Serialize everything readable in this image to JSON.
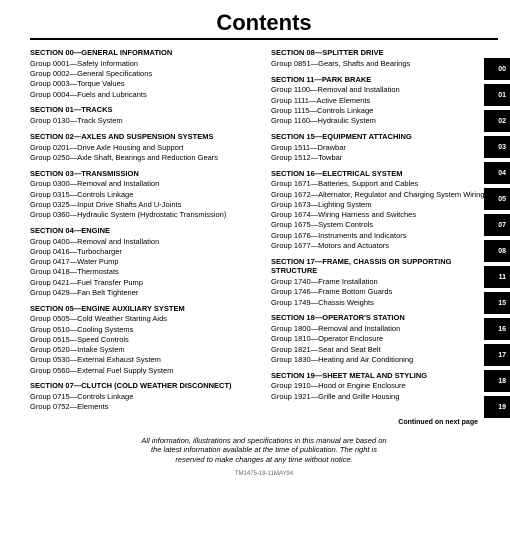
{
  "title": "Contents",
  "tabs": [
    "00",
    "01",
    "02",
    "03",
    "04",
    "05",
    "07",
    "08",
    "11",
    "15",
    "16",
    "17",
    "18",
    "19"
  ],
  "continued": "Continued on next page",
  "footer": [
    "All information, illustrations and specifications in this manual are based on",
    "the latest information available at the time of publication. The right is",
    "reserved to make changes at any time without notice."
  ],
  "docid": "TM1475-19-11MAY94",
  "left": [
    {
      "type": "head",
      "t": "SECTION 00—GENERAL INFORMATION"
    },
    {
      "type": "grp",
      "t": "Group 0001—Safety Information"
    },
    {
      "type": "grp",
      "t": "Group 0002—General Specifications"
    },
    {
      "type": "grp",
      "t": "Group 0003—Torque Values"
    },
    {
      "type": "grp",
      "t": "Group 0004—Fuels and Lubricants"
    },
    {
      "type": "head",
      "t": "SECTION 01—TRACKS"
    },
    {
      "type": "grp",
      "t": "Group 0130—Track System"
    },
    {
      "type": "head",
      "t": "SECTION 02—AXLES AND SUSPENSION SYSTEMS"
    },
    {
      "type": "grp",
      "t": "Group 0201—Drive Axle Housing and Support"
    },
    {
      "type": "grp",
      "t": "Group 0250—Axle Shaft, Bearings and Reduction Gears"
    },
    {
      "type": "head",
      "t": "SECTION 03—TRANSMISSION"
    },
    {
      "type": "grp",
      "t": "Group 0300—Removal and Installation"
    },
    {
      "type": "grp",
      "t": "Group 0315—Controls Linkage"
    },
    {
      "type": "grp",
      "t": "Group 0325—Input Drive Shafts And U-Joints"
    },
    {
      "type": "grp",
      "t": "Group 0360—Hydraulic System (Hydrostatic Transmission)"
    },
    {
      "type": "head",
      "t": "SECTION 04—ENGINE"
    },
    {
      "type": "grp",
      "t": "Group 0400—Removal and Installation"
    },
    {
      "type": "grp",
      "t": "Group 0416—Turbocharger"
    },
    {
      "type": "grp",
      "t": "Group 0417—Water Pump"
    },
    {
      "type": "grp",
      "t": "Group 0418—Thermostats"
    },
    {
      "type": "grp",
      "t": "Group 0421—Fuel Transfer Pump"
    },
    {
      "type": "grp",
      "t": "Group 0429—Fan Belt Tightener"
    },
    {
      "type": "head",
      "t": "SECTION 05—ENGINE AUXILIARY SYSTEM"
    },
    {
      "type": "grp",
      "t": "Group 0505—Cold Weather Starting Aids"
    },
    {
      "type": "grp",
      "t": "Group 0510—Cooling Systems"
    },
    {
      "type": "grp",
      "t": "Group 0515—Speed Controls"
    },
    {
      "type": "grp",
      "t": "Group 0520—Intake System"
    },
    {
      "type": "grp",
      "t": "Group 0530—External Exhaust System"
    },
    {
      "type": "grp",
      "t": "Group 0560—External Fuel Supply System"
    },
    {
      "type": "head",
      "t": "SECTION 07—CLUTCH (COLD WEATHER DISCONNECT)"
    },
    {
      "type": "grp",
      "t": "Group 0715—Controls Linkage"
    },
    {
      "type": "grp",
      "t": "Group 0752—Elements"
    }
  ],
  "right": [
    {
      "type": "head",
      "t": "SECTION 08—SPLITTER DRIVE"
    },
    {
      "type": "grp",
      "t": "Group 0851—Gears, Shafts and Bearings"
    },
    {
      "type": "head",
      "t": "SECTION 11—PARK BRAKE"
    },
    {
      "type": "grp",
      "t": "Group 1100—Removal and Installation"
    },
    {
      "type": "grp",
      "t": "Group 1111—Active Elements"
    },
    {
      "type": "grp",
      "t": "Group 1115—Controls Linkage"
    },
    {
      "type": "grp",
      "t": "Group 1160—Hydraulic System"
    },
    {
      "type": "head",
      "t": "SECTION 15—EQUIPMENT ATTACHING"
    },
    {
      "type": "grp",
      "t": "Group 1511—Drawbar"
    },
    {
      "type": "grp",
      "t": "Group 1512—Towbar"
    },
    {
      "type": "head",
      "t": "SECTION 16—ELECTRICAL SYSTEM"
    },
    {
      "type": "grp",
      "t": "Group 1671—Batteries, Support and Cables"
    },
    {
      "type": "grp",
      "t": "Group 1672—Alternator, Regulator and Charging System Wiring"
    },
    {
      "type": "grp",
      "t": "Group 1673—Lighting System"
    },
    {
      "type": "grp",
      "t": "Group 1674—Wiring Harness and Switches"
    },
    {
      "type": "grp",
      "t": "Group 1675—System Controls"
    },
    {
      "type": "grp",
      "t": "Group 1676—Instruments and Indicators"
    },
    {
      "type": "grp",
      "t": "Group 1677—Motors and Actuators"
    },
    {
      "type": "head",
      "t": "SECTION 17—FRAME, CHASSIS OR SUPPORTING STRUCTURE"
    },
    {
      "type": "grp",
      "t": "Group 1740—Frame Installation"
    },
    {
      "type": "grp",
      "t": "Group 1746—Frame Bottom Guards"
    },
    {
      "type": "grp",
      "t": "Group 1749—Chassis Weights"
    },
    {
      "type": "head",
      "t": "SECTION 18—OPERATOR'S STATION"
    },
    {
      "type": "grp",
      "t": "Group 1800—Removal and Installation"
    },
    {
      "type": "grp",
      "t": "Group 1810—Operator Enclosure"
    },
    {
      "type": "grp",
      "t": "Group 1821—Seat and Seat Belt"
    },
    {
      "type": "grp",
      "t": "Group 1830—Heating and Air Conditioning"
    },
    {
      "type": "head",
      "t": "SECTION 19—SHEET METAL AND STYLING"
    },
    {
      "type": "grp",
      "t": "Group 1910—Hood or Engine Enclosure"
    },
    {
      "type": "grp",
      "t": "Group 1921—Grille and Grille Housing"
    }
  ]
}
